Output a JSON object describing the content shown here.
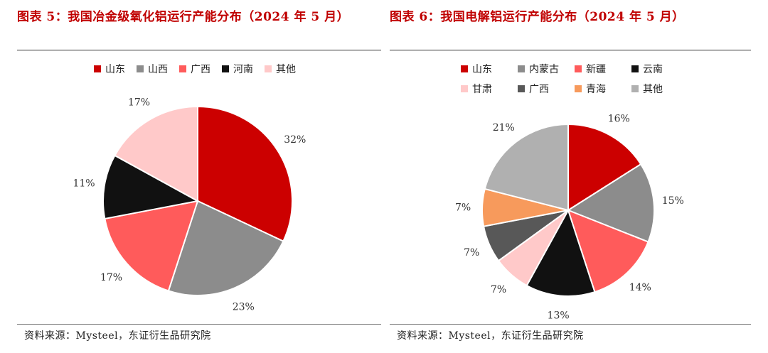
{
  "left": {
    "title": "图表 5：我国冶金级氧化铝运行产能分布（2024 年 5 月）",
    "source": "资料来源：Mysteel，东证衍生品研究院"
  },
  "right": {
    "title": "图表 6：我国电解铝运行产能分布（2024 年 5 月）",
    "source": "资料来源：Mysteel，东证衍生品研究院"
  },
  "chart_data": [
    {
      "type": "pie",
      "title": "我国冶金级氧化铝运行产能分布（2024 年 5 月）",
      "legend_position": "top",
      "slices": [
        {
          "label": "山东",
          "value": 32,
          "display": "32%",
          "color": "#cc0000"
        },
        {
          "label": "山西",
          "value": 23,
          "display": "23%",
          "color": "#8c8c8c"
        },
        {
          "label": "广西",
          "value": 17,
          "display": "17%",
          "color": "#ff5b5b"
        },
        {
          "label": "河南",
          "value": 11,
          "display": "11%",
          "color": "#111111"
        },
        {
          "label": "其他",
          "value": 17,
          "display": "17%",
          "color": "#ffc9c9"
        }
      ]
    },
    {
      "type": "pie",
      "title": "我国电解铝运行产能分布（2024 年 5 月）",
      "legend_position": "top",
      "slices": [
        {
          "label": "山东",
          "value": 16,
          "display": "16%",
          "color": "#cc0000"
        },
        {
          "label": "内蒙古",
          "value": 15,
          "display": "15%",
          "color": "#8c8c8c"
        },
        {
          "label": "新疆",
          "value": 14,
          "display": "14%",
          "color": "#ff5b5b"
        },
        {
          "label": "云南",
          "value": 13,
          "display": "13%",
          "color": "#111111"
        },
        {
          "label": "甘肃",
          "value": 7,
          "display": "7%",
          "color": "#ffc9c9"
        },
        {
          "label": "广西",
          "value": 7,
          "display": "7%",
          "color": "#585858"
        },
        {
          "label": "青海",
          "value": 7,
          "display": "7%",
          "color": "#f79a5c"
        },
        {
          "label": "其他",
          "value": 21,
          "display": "21%",
          "color": "#b0b0b0"
        }
      ]
    }
  ]
}
